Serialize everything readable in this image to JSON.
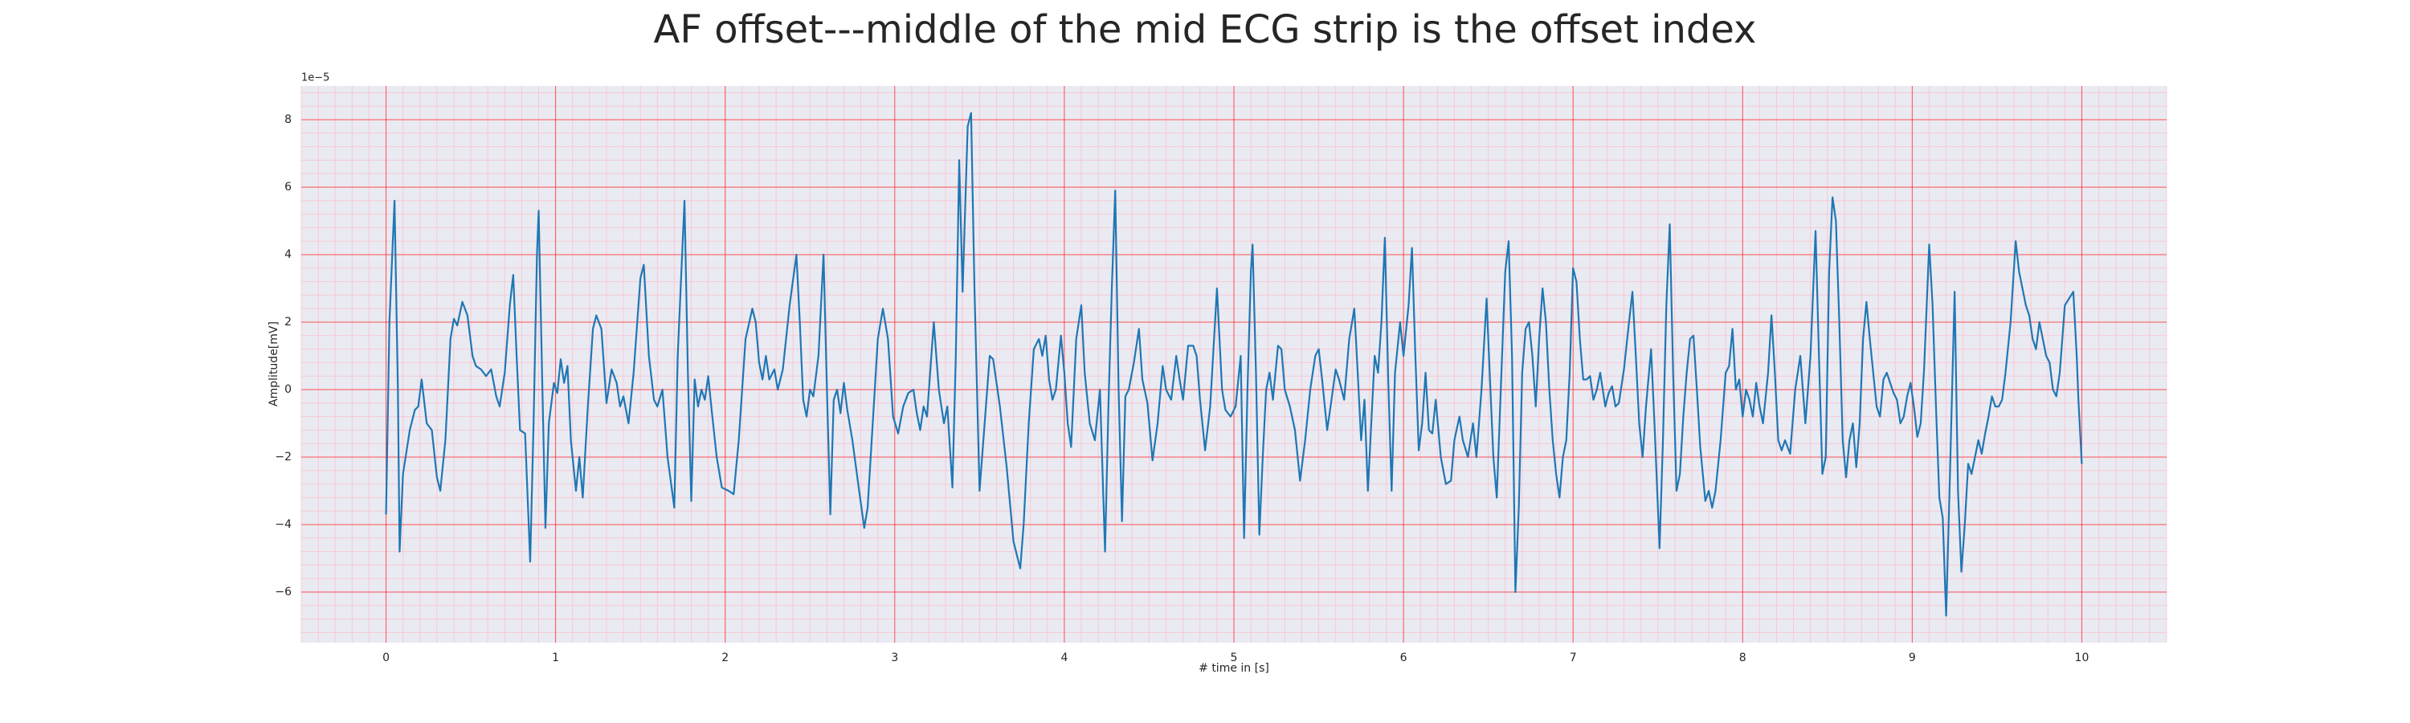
{
  "chart_data": {
    "type": "line",
    "title": "AF offset---middle of the mid ECG strip is the offset index",
    "xlabel": "# time in [s]",
    "ylabel": "Amplitude[mV]",
    "y_offset_label": "1e−5",
    "xlim": [
      -0.5,
      10.5
    ],
    "ylim": [
      -7.5,
      9
    ],
    "xticks": [
      0,
      1,
      2,
      3,
      4,
      5,
      6,
      7,
      8,
      9,
      10
    ],
    "yticks": [
      {
        "value": -6,
        "label": "−6"
      },
      {
        "value": -4,
        "label": "−4"
      },
      {
        "value": -2,
        "label": "−2"
      },
      0,
      2,
      4,
      6,
      8
    ],
    "grid": true,
    "grid_color": "#ff0000",
    "minor_grid_color": "#ffb6c1",
    "minor_xstep": 0.1,
    "minor_ystep": 0.4,
    "background": "#eaeaf2",
    "x": [
      0,
      0.02,
      0.05,
      0.07,
      0.08,
      0.1,
      0.14,
      0.17,
      0.19,
      0.21,
      0.24,
      0.27,
      0.3,
      0.32,
      0.35,
      0.38,
      0.4,
      0.42,
      0.45,
      0.48,
      0.51,
      0.53,
      0.56,
      0.59,
      0.62,
      0.65,
      0.67,
      0.7,
      0.73,
      0.75,
      0.77,
      0.79,
      0.82,
      0.85,
      0.87,
      0.89,
      0.9,
      0.92,
      0.94,
      0.96,
      0.99,
      1.01,
      1.03,
      1.05,
      1.07,
      1.09,
      1.12,
      1.14,
      1.16,
      1.19,
      1.22,
      1.24,
      1.27,
      1.3,
      1.33,
      1.36,
      1.38,
      1.4,
      1.43,
      1.46,
      1.5,
      1.52,
      1.55,
      1.58,
      1.6,
      1.63,
      1.66,
      1.7,
      1.72,
      1.76,
      1.78,
      1.8,
      1.82,
      1.84,
      1.86,
      1.88,
      1.9,
      1.92,
      1.95,
      1.98,
      2.02,
      2.05,
      2.08,
      2.12,
      2.16,
      2.18,
      2.2,
      2.22,
      2.24,
      2.26,
      2.29,
      2.31,
      2.34,
      2.38,
      2.42,
      2.44,
      2.46,
      2.48,
      2.5,
      2.52,
      2.55,
      2.58,
      2.6,
      2.62,
      2.64,
      2.66,
      2.68,
      2.7,
      2.72,
      2.75,
      2.79,
      2.82,
      2.84,
      2.87,
      2.9,
      2.93,
      2.96,
      2.99,
      3.02,
      3.05,
      3.08,
      3.11,
      3.13,
      3.15,
      3.17,
      3.19,
      3.23,
      3.26,
      3.29,
      3.31,
      3.34,
      3.36,
      3.38,
      3.4,
      3.43,
      3.45,
      3.47,
      3.5,
      3.53,
      3.56,
      3.58,
      3.62,
      3.66,
      3.7,
      3.74,
      3.76,
      3.79,
      3.82,
      3.85,
      3.87,
      3.89,
      3.91,
      3.93,
      3.95,
      3.98,
      4.0,
      4.02,
      4.04,
      4.07,
      4.1,
      4.12,
      4.15,
      4.18,
      4.21,
      4.24,
      4.26,
      4.28,
      4.3,
      4.32,
      4.34,
      4.36,
      4.38,
      4.41,
      4.44,
      4.46,
      4.49,
      4.52,
      4.55,
      4.58,
      4.6,
      4.63,
      4.66,
      4.68,
      4.7,
      4.73,
      4.76,
      4.78,
      4.8,
      4.83,
      4.86,
      4.9,
      4.93,
      4.95,
      4.98,
      5.01,
      5.04,
      5.06,
      5.08,
      5.1,
      5.11,
      5.13,
      5.15,
      5.17,
      5.19,
      5.21,
      5.23,
      5.26,
      5.28,
      5.3,
      5.33,
      5.36,
      5.39,
      5.42,
      5.45,
      5.48,
      5.5,
      5.52,
      5.55,
      5.57,
      5.6,
      5.62,
      5.65,
      5.68,
      5.71,
      5.73,
      5.75,
      5.77,
      5.79,
      5.81,
      5.83,
      5.85,
      5.87,
      5.89,
      5.91,
      5.93,
      5.95,
      5.98,
      6.0,
      6.03,
      6.05,
      6.07,
      6.09,
      6.11,
      6.13,
      6.15,
      6.17,
      6.19,
      6.22,
      6.25,
      6.28,
      6.3,
      6.33,
      6.35,
      6.38,
      6.41,
      6.43,
      6.46,
      6.49,
      6.51,
      6.53,
      6.55,
      6.57,
      6.6,
      6.62,
      6.64,
      6.66,
      6.68,
      6.7,
      6.72,
      6.74,
      6.76,
      6.78,
      6.8,
      6.82,
      6.84,
      6.86,
      6.88,
      6.9,
      6.92,
      6.94,
      6.96,
      6.98,
      7.0,
      7.02,
      7.04,
      7.06,
      7.08,
      7.1,
      7.12,
      7.14,
      7.16,
      7.19,
      7.21,
      7.23,
      7.25,
      7.27,
      7.3,
      7.33,
      7.35,
      7.37,
      7.39,
      7.41,
      7.43,
      7.46,
      7.48,
      7.51,
      7.53,
      7.55,
      7.57,
      7.59,
      7.61,
      7.63,
      7.65,
      7.67,
      7.69,
      7.71,
      7.73,
      7.75,
      7.78,
      7.8,
      7.82,
      7.84,
      7.87,
      7.9,
      7.92,
      7.94,
      7.96,
      7.98,
      8.0,
      8.02,
      8.04,
      8.06,
      8.08,
      8.1,
      8.12,
      8.15,
      8.17,
      8.19,
      8.21,
      8.23,
      8.25,
      8.28,
      8.31,
      8.34,
      8.37,
      8.4,
      8.43,
      8.45,
      8.47,
      8.49,
      8.51,
      8.53,
      8.55,
      8.57,
      8.59,
      8.61,
      8.63,
      8.65,
      8.67,
      8.69,
      8.71,
      8.73,
      8.75,
      8.77,
      8.79,
      8.81,
      8.83,
      8.85,
      8.87,
      8.89,
      8.91,
      8.93,
      8.95,
      8.97,
      8.99,
      9.01,
      9.03,
      9.05,
      9.07,
      9.1,
      9.12,
      9.14,
      9.16,
      9.18,
      9.2,
      9.22,
      9.25,
      9.27,
      9.29,
      9.31,
      9.33,
      9.35,
      9.37,
      9.39,
      9.41,
      9.43,
      9.45,
      9.47,
      9.49,
      9.51,
      9.53,
      9.55,
      9.58,
      9.61,
      9.63,
      9.65,
      9.67,
      9.69,
      9.71,
      9.73,
      9.75,
      9.77,
      9.79,
      9.81,
      9.83,
      9.85,
      9.87,
      9.9,
      9.95,
      9.97,
      9.98,
      10.0
    ],
    "series": [
      {
        "color": "#1f77b4",
        "values": [
          -3.7,
          2,
          5.6,
          0,
          -4.8,
          -2.5,
          -1.2,
          -0.6,
          -0.5,
          0.3,
          -1.0,
          -1.2,
          -2.6,
          -3.0,
          -1.5,
          1.5,
          2.1,
          1.9,
          2.6,
          2.2,
          1.0,
          0.7,
          0.6,
          0.4,
          0.6,
          -0.2,
          -0.5,
          0.5,
          2.5,
          3.4,
          1.0,
          -1.2,
          -1.3,
          -5.1,
          -1.0,
          4.0,
          5.3,
          0.5,
          -4.1,
          -1.0,
          0.2,
          -0.1,
          0.9,
          0.2,
          0.7,
          -1.5,
          -3.0,
          -2.0,
          -3.2,
          -0.5,
          1.8,
          2.2,
          1.8,
          -0.4,
          0.6,
          0.2,
          -0.5,
          -0.2,
          -1.0,
          0.5,
          3.3,
          3.7,
          1.0,
          -0.3,
          -0.5,
          0,
          -2.0,
          -3.5,
          1.0,
          5.6,
          0.5,
          -3.3,
          0.3,
          -0.5,
          0,
          -0.3,
          0.4,
          -0.6,
          -2.0,
          -2.9,
          -3.0,
          -3.1,
          -1.5,
          1.5,
          2.4,
          2.0,
          0.8,
          0.3,
          1.0,
          0.3,
          0.6,
          0,
          0.6,
          2.5,
          4.0,
          2.0,
          -0.3,
          -0.8,
          0,
          -0.2,
          1.0,
          4.0,
          0,
          -3.7,
          -0.3,
          0,
          -0.7,
          0.2,
          -0.6,
          -1.5,
          -3.0,
          -4.1,
          -3.5,
          -1.0,
          1.5,
          2.4,
          1.5,
          -0.8,
          -1.3,
          -0.5,
          -0.1,
          0,
          -0.7,
          -1.2,
          -0.5,
          -0.8,
          2.0,
          0,
          -1.0,
          -0.5,
          -2.9,
          1.0,
          6.8,
          2.9,
          7.8,
          8.2,
          3.0,
          -3.0,
          -1.0,
          1.0,
          0.9,
          -0.5,
          -2.3,
          -4.5,
          -5.3,
          -4.0,
          -1.0,
          1.2,
          1.5,
          1.0,
          1.6,
          0.3,
          -0.3,
          0,
          1.6,
          0.5,
          -1.0,
          -1.7,
          1.5,
          2.5,
          0.5,
          -1.0,
          -1.5,
          0,
          -4.8,
          -0.5,
          3.0,
          5.9,
          0,
          -3.9,
          -0.2,
          0,
          0.8,
          1.8,
          0.3,
          -0.4,
          -2.1,
          -1.0,
          0.7,
          0,
          -0.3,
          1.0,
          0.3,
          -0.3,
          1.3,
          1.3,
          1.0,
          -0.3,
          -1.8,
          -0.5,
          3.0,
          0,
          -0.6,
          -0.8,
          -0.5,
          1.0,
          -4.4,
          0,
          3.5,
          4.3,
          0.5,
          -4.3,
          -2.0,
          0,
          0.5,
          -0.3,
          1.3,
          1.2,
          0,
          -0.5,
          -1.2,
          -2.7,
          -1.5,
          0,
          1.0,
          1.2,
          0.3,
          -1.2,
          -0.5,
          0.6,
          0.3,
          -0.3,
          1.5,
          2.4,
          0.5,
          -1.5,
          -0.3,
          -3.0,
          -1.0,
          1.0,
          0.5,
          2.0,
          4.5,
          0.3,
          -3.0,
          0.5,
          2.0,
          1.0,
          2.5,
          4.2,
          1.0,
          -1.8,
          -1.0,
          0.5,
          -1.2,
          -1.3,
          -0.3,
          -2.0,
          -2.8,
          -2.7,
          -1.5,
          -0.8,
          -1.5,
          -2.0,
          -1.0,
          -2.0,
          0,
          2.7,
          0.3,
          -2.0,
          -3.2,
          -0.5,
          3.5,
          4.4,
          1.0,
          -6.0,
          -3.5,
          0.5,
          1.8,
          2.0,
          1.0,
          -0.5,
          1.5,
          3.0,
          2.0,
          0,
          -1.5,
          -2.5,
          -3.2,
          -2.0,
          -1.5,
          0.5,
          3.6,
          3.2,
          1.5,
          0.3,
          0.3,
          0.4,
          -0.3,
          0,
          0.5,
          -0.5,
          -0.1,
          0.1,
          -0.5,
          -0.4,
          0.6,
          2.0,
          2.9,
          1.0,
          -1.0,
          -2.0,
          -0.5,
          1.2,
          -1.0,
          -4.7,
          -1.5,
          2.5,
          4.9,
          0.5,
          -3.0,
          -2.5,
          -0.8,
          0.5,
          1.5,
          1.6,
          0,
          -1.7,
          -3.3,
          -3.0,
          -3.5,
          -3.0,
          -1.5,
          0.5,
          0.7,
          1.8,
          0,
          0.3,
          -0.8,
          0,
          -0.3,
          -0.8,
          0.2,
          -0.5,
          -1.0,
          0.5,
          2.2,
          0.5,
          -1.5,
          -1.8,
          -1.5,
          -1.9,
          0,
          1.0,
          -1.0,
          1.0,
          4.7,
          1.0,
          -2.5,
          -2.0,
          3.5,
          5.7,
          5.0,
          2.0,
          -1.5,
          -2.6,
          -1.5,
          -1.0,
          -2.3,
          -1.0,
          1.5,
          2.6,
          1.5,
          0.5,
          -0.5,
          -0.8,
          0.3,
          0.5,
          0.2,
          -0.1,
          -0.3,
          -1.0,
          -0.8,
          -0.2,
          0.2,
          -0.5,
          -1.4,
          -1.0,
          0.6,
          4.3,
          2.5,
          -0.5,
          -3.2,
          -3.8,
          -6.7,
          -3.0,
          2.9,
          -3.0,
          -5.4,
          -4.0,
          -2.2,
          -2.5,
          -2.0,
          -1.5,
          -1.9,
          -1.3,
          -0.8,
          -0.2,
          -0.5,
          -0.5,
          -0.3,
          0.5,
          2.0,
          4.4,
          3.5,
          3.0,
          2.5,
          2.2,
          1.5,
          1.2,
          2.0,
          1.5,
          1.0,
          0.8,
          0,
          -0.2,
          0.5,
          2.5,
          2.9,
          1.0,
          -0.3,
          -2.2
        ]
      }
    ]
  }
}
